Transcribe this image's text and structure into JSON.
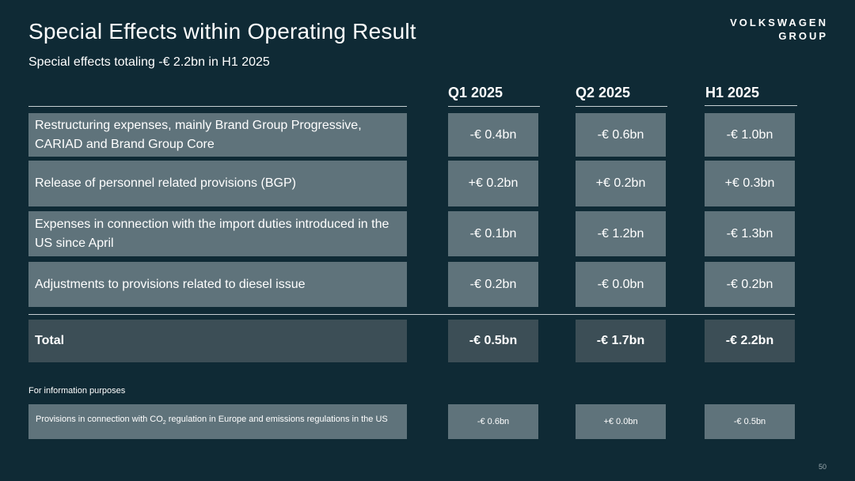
{
  "title": "Special Effects within Operating Result",
  "subtitle": "Special effects totaling -€ 2.2bn in H1 2025",
  "brand": {
    "line1": "VOLKSWAGEN",
    "line2": "GROUP"
  },
  "columns": [
    "Q1 2025",
    "Q2 2025",
    "H1 2025"
  ],
  "rows": [
    {
      "label": "Restructuring expenses, mainly Brand Group Progressive, CARIAD and Brand Group Core",
      "values": [
        "-€ 0.4bn",
        "-€ 0.6bn",
        "-€ 1.0bn"
      ]
    },
    {
      "label": "Release of personnel related provisions (BGP)",
      "values": [
        "+€ 0.2bn",
        "+€ 0.2bn",
        "+€ 0.3bn"
      ]
    },
    {
      "label": "Expenses in connection with the import duties introduced in the US since April",
      "values": [
        "-€ 0.1bn",
        "-€ 1.2bn",
        "-€ 1.3bn"
      ]
    },
    {
      "label": "Adjustments to provisions related to diesel issue",
      "values": [
        "-€ 0.2bn",
        "-€ 0.0bn",
        "-€ 0.2bn"
      ]
    }
  ],
  "total": {
    "label": "Total",
    "values": [
      "-€ 0.5bn",
      "-€ 1.7bn",
      "-€ 2.2bn"
    ]
  },
  "info": {
    "heading": "For information purposes",
    "label_pre": "Provisions in connection with CO",
    "label_sub": "2",
    "label_post": " regulation in Europe and emissions regulations in the US",
    "values": [
      "-€ 0.6bn",
      "+€ 0.0bn",
      "-€ 0.5bn"
    ]
  },
  "page_number": "50"
}
